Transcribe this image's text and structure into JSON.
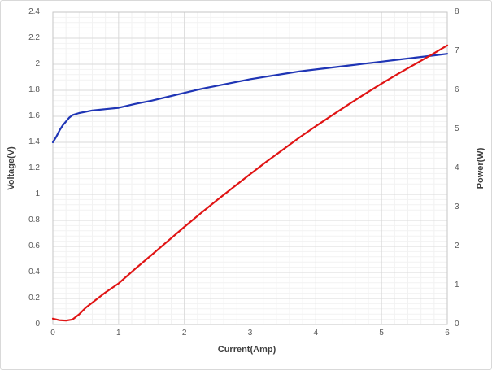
{
  "chart_data": {
    "type": "line",
    "title": "",
    "xlabel": "Current(Amp)",
    "ylabel_left": "Voltage(V)",
    "ylabel_right": "Power(W)",
    "xlim": [
      0,
      6
    ],
    "ylim_left": [
      0,
      2.4
    ],
    "ylim_right": [
      0,
      8
    ],
    "x_tick_labels": [
      "0",
      "1",
      "2",
      "3",
      "4",
      "5",
      "6"
    ],
    "x_tick_values": [
      0,
      1,
      2,
      3,
      4,
      5,
      6
    ],
    "y_left_tick_labels": [
      "0",
      "0.2",
      "0.4",
      "0.6",
      "0.8",
      "1",
      "1.2",
      "1.4",
      "1.6",
      "1.8",
      "2",
      "2.2",
      "2.4"
    ],
    "y_left_tick_values": [
      0,
      0.2,
      0.4,
      0.6,
      0.8,
      1.0,
      1.2,
      1.4,
      1.6,
      1.8,
      2.0,
      2.2,
      2.4
    ],
    "y_right_tick_labels": [
      "0",
      "1",
      "2",
      "3",
      "4",
      "5",
      "6",
      "7",
      "8"
    ],
    "y_right_tick_values": [
      0,
      1,
      2,
      3,
      4,
      5,
      6,
      7,
      8
    ],
    "x_minor_step": 0.2,
    "y_left_minor_step": 0.04,
    "grid": {
      "major_color": "#d9d9d9",
      "minor_color": "#f2f2f2",
      "border_color": "#c6c6c6"
    },
    "legend_position": "none",
    "series": [
      {
        "name": "Voltage",
        "axis": "left",
        "color": "#1f35b5",
        "x": [
          0,
          0.05,
          0.1,
          0.15,
          0.2,
          0.25,
          0.3,
          0.4,
          0.5,
          0.6,
          0.8,
          1.0,
          1.25,
          1.5,
          1.75,
          2.0,
          2.25,
          2.5,
          2.75,
          3.0,
          3.25,
          3.5,
          3.75,
          4.0,
          4.25,
          4.5,
          4.75,
          5.0,
          5.25,
          5.5,
          5.75,
          6.0
        ],
        "y": [
          1.4,
          1.44,
          1.49,
          1.53,
          1.56,
          1.59,
          1.61,
          1.625,
          1.635,
          1.645,
          1.655,
          1.665,
          1.695,
          1.72,
          1.75,
          1.78,
          1.81,
          1.835,
          1.86,
          1.885,
          1.905,
          1.925,
          1.945,
          1.96,
          1.975,
          1.99,
          2.005,
          2.02,
          2.035,
          2.05,
          2.065,
          2.08
        ]
      },
      {
        "name": "Power",
        "axis": "right",
        "color": "#e01414",
        "x": [
          0,
          0.1,
          0.2,
          0.3,
          0.4,
          0.5,
          0.6,
          0.8,
          1.0,
          1.25,
          1.5,
          1.75,
          2.0,
          2.25,
          2.5,
          2.75,
          3.0,
          3.25,
          3.5,
          3.75,
          4.0,
          4.25,
          4.5,
          4.75,
          5.0,
          5.25,
          5.5,
          5.75,
          6.0
        ],
        "y": [
          0.15,
          0.11,
          0.1,
          0.13,
          0.26,
          0.43,
          0.56,
          0.82,
          1.05,
          1.42,
          1.78,
          2.14,
          2.5,
          2.85,
          3.19,
          3.52,
          3.85,
          4.17,
          4.48,
          4.79,
          5.08,
          5.36,
          5.64,
          5.91,
          6.17,
          6.42,
          6.66,
          6.9,
          7.15
        ]
      }
    ]
  }
}
